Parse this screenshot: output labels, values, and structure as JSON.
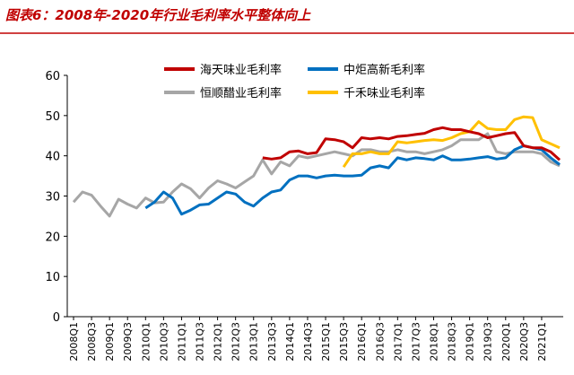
{
  "chart_data": {
    "type": "line",
    "title": "图表6：2008年-2020年行业毛利率水平整体向上",
    "categories": [
      "2008Q1",
      null,
      "2008Q3",
      null,
      "2009Q1",
      null,
      "2009Q3",
      null,
      "2010Q1",
      null,
      "2010Q3",
      null,
      "2011Q1",
      null,
      "2011Q3",
      null,
      "2012Q1",
      null,
      "2012Q3",
      null,
      "2013Q1",
      null,
      "2013Q3",
      null,
      "2014Q1",
      null,
      "2014Q3",
      null,
      "2015Q1",
      null,
      "2015Q3",
      null,
      "2016Q1",
      null,
      "2016Q3",
      null,
      "2017Q1",
      null,
      "2017Q3",
      null,
      "2018Q1",
      null,
      "2018Q3",
      null,
      "2019Q1",
      null,
      "2019Q3",
      null,
      "2020Q1",
      null,
      "2020Q3",
      null,
      "2021Q1",
      null,
      null
    ],
    "series": [
      {
        "name": "海天味业毛利率",
        "color": "#c00000",
        "values": [
          null,
          null,
          null,
          null,
          null,
          null,
          null,
          null,
          null,
          null,
          null,
          null,
          null,
          null,
          null,
          null,
          null,
          null,
          null,
          null,
          null,
          39.5,
          39.2,
          39.5,
          41,
          41.2,
          40.5,
          40.8,
          44.2,
          44,
          43.5,
          42,
          44.5,
          44.2,
          44.5,
          44.2,
          44.8,
          45,
          45.3,
          45.6,
          46.5,
          47,
          46.5,
          46.5,
          46,
          45.5,
          44.5,
          45,
          45.5,
          45.8,
          42.5,
          42,
          42,
          41,
          39
        ]
      },
      {
        "name": "中炬高新毛利率",
        "color": "#0070c0",
        "values": [
          null,
          null,
          null,
          null,
          null,
          null,
          null,
          null,
          27,
          28.5,
          31,
          29.5,
          25.5,
          26.5,
          27.8,
          28,
          29.5,
          31,
          30.5,
          28.5,
          27.5,
          29.5,
          31,
          31.5,
          34,
          35,
          35,
          34.5,
          35,
          35.2,
          35,
          35,
          35.2,
          37,
          37.5,
          37,
          39.5,
          39,
          39.5,
          39.3,
          39,
          40,
          39,
          39,
          39.2,
          39.5,
          39.8,
          39.2,
          39.5,
          41.5,
          42.5,
          42,
          41.5,
          39.5,
          37.8
        ]
      },
      {
        "name": "恒顺醋业毛利率",
        "color": "#a6a6a6",
        "values": [
          28.5,
          31,
          30.2,
          27.5,
          25,
          29.2,
          28,
          27,
          29.5,
          28.3,
          28.5,
          31,
          33,
          31.8,
          29.5,
          32,
          33.8,
          33,
          32,
          33.5,
          35,
          39,
          35.5,
          38.5,
          37.5,
          40,
          39.5,
          40,
          40.5,
          41,
          40.5,
          40,
          41.5,
          41.5,
          41,
          41,
          41.5,
          41,
          41,
          40.5,
          41,
          41.5,
          42.5,
          44,
          44,
          44,
          45.5,
          41,
          40.5,
          41,
          41,
          41,
          40.5,
          38.5,
          37.5
        ]
      },
      {
        "name": "千禾味业毛利率",
        "color": "#ffc000",
        "values": [
          null,
          null,
          null,
          null,
          null,
          null,
          null,
          null,
          null,
          null,
          null,
          null,
          null,
          null,
          null,
          null,
          null,
          null,
          null,
          null,
          null,
          null,
          null,
          null,
          null,
          null,
          null,
          null,
          null,
          null,
          37.2,
          40.5,
          40.5,
          41,
          40.5,
          40.5,
          43.5,
          43.2,
          43.5,
          43.8,
          44,
          43.8,
          44.5,
          45.5,
          46,
          48.5,
          46.8,
          46.5,
          46.5,
          49,
          49.7,
          49.5,
          44,
          43,
          42
        ]
      }
    ],
    "ylim": [
      0,
      60
    ],
    "yticks": [
      0,
      10,
      20,
      30,
      40,
      50,
      60
    ]
  }
}
